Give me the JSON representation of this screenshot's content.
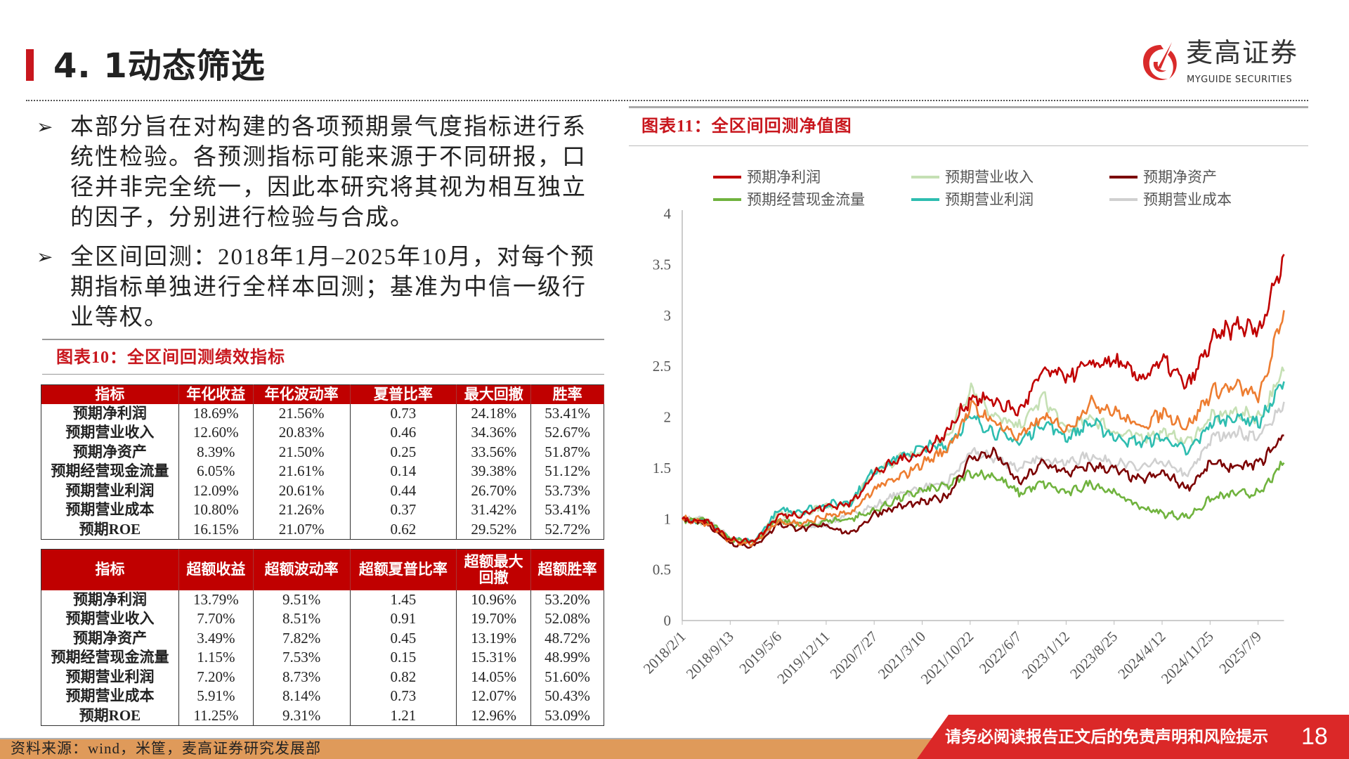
{
  "header": {
    "title": "4. 1动态筛选",
    "logo_cn": "麦高证券",
    "logo_en": "MYGUIDE SECURITIES"
  },
  "bullets": [
    "本部分旨在对构建的各项预期景气度指标进行系统性检验。各预测指标可能来源于不同研报，口径并非完全统一，因此本研究将其视为相互独立的因子，分别进行检验与合成。",
    "全区间回测：2018年1月–2025年10月，对每个预期指标单独进行全样本回测；基准为中信一级行业等权。"
  ],
  "table10": {
    "caption": "图表10：全区间回测绩效指标",
    "headers": [
      "指标",
      "年化收益",
      "年化波动率",
      "夏普比率",
      "最大回撤",
      "胜率"
    ],
    "rows": [
      [
        "预期净利润",
        "18.69%",
        "21.56%",
        "0.73",
        "24.18%",
        "53.41%"
      ],
      [
        "预期营业收入",
        "12.60%",
        "20.83%",
        "0.46",
        "34.36%",
        "52.67%"
      ],
      [
        "预期净资产",
        "8.39%",
        "21.50%",
        "0.25",
        "33.56%",
        "51.87%"
      ],
      [
        "预期经营现金流量",
        "6.05%",
        "21.61%",
        "0.14",
        "39.38%",
        "51.12%"
      ],
      [
        "预期营业利润",
        "12.09%",
        "20.61%",
        "0.44",
        "26.70%",
        "53.73%"
      ],
      [
        "预期营业成本",
        "10.80%",
        "21.26%",
        "0.37",
        "31.42%",
        "53.41%"
      ],
      [
        "预期ROE",
        "16.15%",
        "21.07%",
        "0.62",
        "29.52%",
        "52.72%"
      ]
    ],
    "headers2": [
      "指标",
      "超额收益",
      "超额波动率",
      "超额夏普比率",
      "超额最大回撤",
      "超额胜率"
    ],
    "rows2": [
      [
        "预期净利润",
        "13.79%",
        "9.51%",
        "1.45",
        "10.96%",
        "53.20%"
      ],
      [
        "预期营业收入",
        "7.70%",
        "8.51%",
        "0.91",
        "19.70%",
        "52.08%"
      ],
      [
        "预期净资产",
        "3.49%",
        "7.82%",
        "0.45",
        "13.19%",
        "48.72%"
      ],
      [
        "预期经营现金流量",
        "1.15%",
        "7.53%",
        "0.15",
        "15.31%",
        "48.99%"
      ],
      [
        "预期营业利润",
        "7.20%",
        "8.73%",
        "0.82",
        "14.05%",
        "51.60%"
      ],
      [
        "预期营业成本",
        "5.91%",
        "8.14%",
        "0.73",
        "12.07%",
        "50.43%"
      ],
      [
        "预期ROE",
        "11.25%",
        "9.31%",
        "1.21",
        "12.96%",
        "53.09%"
      ]
    ]
  },
  "chart_data": {
    "type": "line",
    "title": "图表11：全区间回测净值图",
    "xlabel": "",
    "ylabel": "",
    "ylim": [
      0,
      4
    ],
    "yticks": [
      "0",
      "0.5",
      "1",
      "1.5",
      "2",
      "2.5",
      "3",
      "3.5",
      "4"
    ],
    "xticks": [
      "2018/2/1",
      "2018/9/13",
      "2019/5/6",
      "2019/12/11",
      "2020/7/27",
      "2021/3/10",
      "2021/10/22",
      "2022/6/7",
      "2023/1/12",
      "2023/8/25",
      "2024/4/12",
      "2024/11/25",
      "2025/7/9"
    ],
    "x": [
      "2018/2/1",
      "2018/5/24",
      "2018/9/13",
      "2019/1/9",
      "2019/5/6",
      "2019/8/23",
      "2019/12/11",
      "2020/4/3",
      "2020/7/27",
      "2020/11/16",
      "2021/3/10",
      "2021/7/1",
      "2021/10/22",
      "2022/2/13",
      "2022/6/7",
      "2022/9/24",
      "2023/1/12",
      "2023/5/5",
      "2023/8/25",
      "2023/12/18",
      "2024/4/12",
      "2024/8/3",
      "2024/11/25",
      "2025/3/18",
      "2025/7/9",
      "2025/10/31"
    ],
    "legend_position": "top",
    "series": [
      {
        "name": "预期净利润",
        "color": "#c00000",
        "values": [
          1.0,
          0.97,
          0.8,
          0.78,
          1.03,
          1.05,
          1.12,
          1.15,
          1.45,
          1.58,
          1.65,
          1.85,
          2.2,
          2.15,
          2.05,
          2.45,
          2.4,
          2.52,
          2.55,
          2.38,
          2.55,
          2.3,
          2.75,
          2.9,
          2.85,
          3.6
        ]
      },
      {
        "name": "预期营业收入",
        "color": "#c5e0b4",
        "values": [
          1.0,
          0.97,
          0.8,
          0.78,
          1.05,
          1.06,
          1.12,
          1.15,
          1.45,
          1.6,
          1.66,
          1.8,
          2.3,
          2.0,
          1.9,
          2.2,
          1.85,
          2.0,
          1.85,
          1.8,
          1.85,
          1.75,
          2.0,
          2.05,
          2.0,
          2.45
        ]
      },
      {
        "name": "预期净资产",
        "color": "#7b0000",
        "values": [
          1.0,
          0.96,
          0.76,
          0.73,
          0.95,
          0.9,
          0.94,
          0.85,
          1.05,
          1.12,
          1.16,
          1.22,
          1.6,
          1.65,
          1.35,
          1.55,
          1.45,
          1.52,
          1.48,
          1.38,
          1.45,
          1.3,
          1.55,
          1.5,
          1.55,
          1.82
        ]
      },
      {
        "name": "预期经营现金流量",
        "color": "#70b33e",
        "values": [
          1.0,
          0.98,
          0.8,
          0.78,
          0.98,
          0.93,
          0.98,
          1.0,
          1.08,
          1.2,
          1.28,
          1.32,
          1.45,
          1.42,
          1.25,
          1.35,
          1.25,
          1.35,
          1.25,
          1.12,
          1.05,
          1.02,
          1.2,
          1.25,
          1.25,
          1.55
        ]
      },
      {
        "name": "预期营业利润",
        "color": "#2ebdb0",
        "values": [
          1.0,
          0.98,
          0.79,
          0.78,
          1.08,
          1.08,
          1.14,
          1.17,
          1.48,
          1.6,
          1.7,
          1.72,
          2.0,
          1.85,
          1.75,
          1.95,
          1.8,
          1.95,
          1.8,
          1.75,
          1.8,
          1.65,
          1.95,
          2.0,
          1.95,
          2.35
        ]
      },
      {
        "name": "预期营业成本",
        "color": "#d0d0d0",
        "values": [
          1.0,
          1.0,
          0.8,
          0.76,
          1.0,
          0.92,
          0.95,
          1.05,
          1.12,
          1.25,
          1.3,
          1.35,
          1.65,
          1.6,
          1.5,
          1.6,
          1.55,
          1.62,
          1.55,
          1.5,
          1.55,
          1.42,
          1.8,
          1.85,
          1.8,
          2.15
        ]
      },
      {
        "color": "#ed7d31",
        "values": [
          1.0,
          0.96,
          0.78,
          0.76,
          0.98,
          0.95,
          1.03,
          1.05,
          1.3,
          1.4,
          1.55,
          1.68,
          2.1,
          1.95,
          1.8,
          2.0,
          1.88,
          2.15,
          2.05,
          1.9,
          2.05,
          1.9,
          2.25,
          2.3,
          2.2,
          3.05
        ]
      }
    ]
  },
  "footer": {
    "source": "资料来源：wind，米筐，麦高证券研究发展部",
    "disclaimer": "请务必阅读报告正文后的免责声明和风险提示",
    "page": "18"
  }
}
